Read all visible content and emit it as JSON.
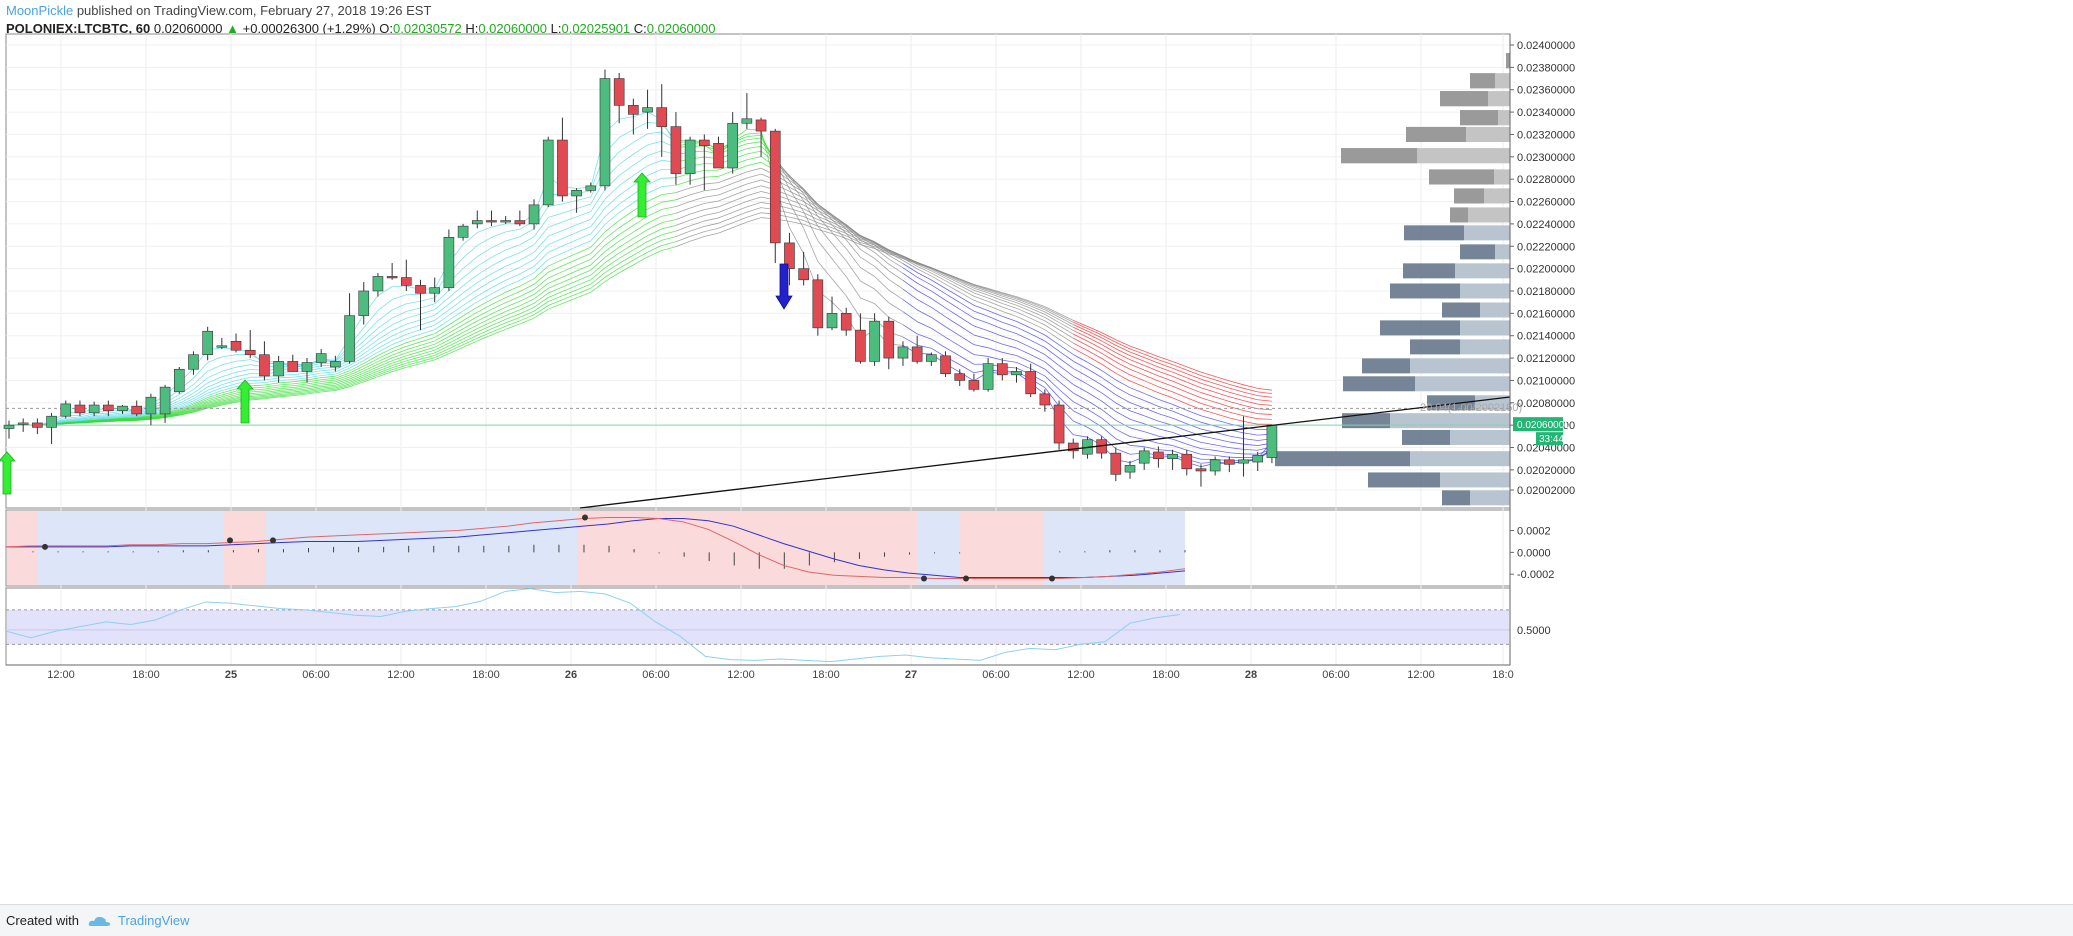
{
  "header": {
    "author": "MoonPickle",
    "published": "published on TradingView.com, February 27, 2018 19:26 EST",
    "symbol": "POLONIEX:LTCBTC, 60",
    "last": "0.02060000",
    "change_arrow": "▲",
    "change": "+0.00026300 (+1.29%)",
    "o_label": "O:",
    "o": "0.02030572",
    "h_label": "H:",
    "h": "0.02060000",
    "l_label": "L:",
    "l": "0.02025901",
    "c_label": "C:",
    "c": "0.02060000"
  },
  "footer": {
    "created_with": "Created with",
    "brand": "TradingView",
    "brand_icon": "tradingview-cloud-icon"
  },
  "colors": {
    "up": "#4dbd7f",
    "down": "#e04a52",
    "ribbon_cyan": "#4fd8e8",
    "ribbon_green": "#33dd33",
    "ribbon_gray": "#888888",
    "ribbon_blue": "#3a3aee",
    "ribbon_red": "#ee2222",
    "price_tag": "#22b573",
    "vp_up": "#b8c4d0",
    "vp_down": "#66788c"
  },
  "chart_data": [
    {
      "type": "candlestick",
      "title": "",
      "x_ticks": [
        "12:00",
        "18:00",
        "25",
        "06:00",
        "12:00",
        "18:00",
        "26",
        "06:00",
        "12:00",
        "18:00",
        "27",
        "06:00",
        "12:00",
        "18:00",
        "28",
        "06:00",
        "12:00",
        "18:0"
      ],
      "y_ticks": [
        "0.02400000",
        "0.02380000",
        "0.02360000",
        "0.02340000",
        "0.02320000",
        "0.02300000",
        "0.02280000",
        "0.02260000",
        "0.02240000",
        "0.02220000",
        "0.02200000",
        "0.02180000",
        "0.02160000",
        "0.02140000",
        "0.02120000",
        "0.02100000",
        "0.02080000",
        "0.02060000",
        "0.02040000",
        "0.02020000",
        "0.02002000"
      ],
      "y_range": [
        0.0199,
        0.0241
      ],
      "current_price_label": "0.02060000",
      "countdown_label": "33:44",
      "trendline_label": "20.04(1.00/2002150)",
      "ohlc": [
        [
          0.02057,
          0.02064,
          0.02048,
          0.0206
        ],
        [
          0.02061,
          0.02066,
          0.02054,
          0.02062
        ],
        [
          0.02062,
          0.02066,
          0.02052,
          0.02058
        ],
        [
          0.02058,
          0.02071,
          0.02043,
          0.02068
        ],
        [
          0.02068,
          0.02082,
          0.02066,
          0.02079
        ],
        [
          0.02078,
          0.02082,
          0.02068,
          0.02071
        ],
        [
          0.02071,
          0.02081,
          0.02068,
          0.02078
        ],
        [
          0.02078,
          0.02082,
          0.02068,
          0.02073
        ],
        [
          0.02073,
          0.02078,
          0.0207,
          0.02077
        ],
        [
          0.02077,
          0.02082,
          0.02068,
          0.0207
        ],
        [
          0.0207,
          0.02088,
          0.0206,
          0.02085
        ],
        [
          0.0207,
          0.02096,
          0.02062,
          0.02094
        ],
        [
          0.0209,
          0.02112,
          0.02088,
          0.0211
        ],
        [
          0.0211,
          0.02126,
          0.02105,
          0.02123
        ],
        [
          0.02123,
          0.02148,
          0.02118,
          0.02144
        ],
        [
          0.0213,
          0.02138,
          0.02128,
          0.02131
        ],
        [
          0.02135,
          0.02142,
          0.02125,
          0.02127
        ],
        [
          0.02127,
          0.02145,
          0.0212,
          0.02123
        ],
        [
          0.02123,
          0.02135,
          0.021,
          0.02104
        ],
        [
          0.02104,
          0.02122,
          0.02098,
          0.02117
        ],
        [
          0.02117,
          0.02123,
          0.02108,
          0.02108
        ],
        [
          0.02108,
          0.0212,
          0.02098,
          0.02116
        ],
        [
          0.02116,
          0.02128,
          0.02112,
          0.02124
        ],
        [
          0.02112,
          0.02122,
          0.02108,
          0.02117
        ],
        [
          0.02117,
          0.02178,
          0.02115,
          0.02158
        ],
        [
          0.02158,
          0.02188,
          0.0215,
          0.0218
        ],
        [
          0.0218,
          0.02196,
          0.02175,
          0.02193
        ],
        [
          0.02193,
          0.02205,
          0.0219,
          0.02192
        ],
        [
          0.02192,
          0.02208,
          0.0218,
          0.02185
        ],
        [
          0.02185,
          0.0219,
          0.02145,
          0.02178
        ],
        [
          0.02178,
          0.02192,
          0.0217,
          0.02183
        ],
        [
          0.02183,
          0.02235,
          0.0218,
          0.02228
        ],
        [
          0.02228,
          0.0224,
          0.02225,
          0.02238
        ],
        [
          0.0224,
          0.02252,
          0.02236,
          0.02243
        ],
        [
          0.02243,
          0.02252,
          0.02238,
          0.02242
        ],
        [
          0.02242,
          0.02247,
          0.0224,
          0.02243
        ],
        [
          0.02243,
          0.02252,
          0.02238,
          0.0224
        ],
        [
          0.0224,
          0.02262,
          0.02235,
          0.02257
        ],
        [
          0.02257,
          0.02318,
          0.02255,
          0.02315
        ],
        [
          0.02315,
          0.02335,
          0.0226,
          0.02265
        ],
        [
          0.02265,
          0.02272,
          0.0225,
          0.0227
        ],
        [
          0.0227,
          0.02277,
          0.02268,
          0.02274
        ],
        [
          0.02274,
          0.02378,
          0.0227,
          0.0237
        ],
        [
          0.0237,
          0.02375,
          0.0233,
          0.02346
        ],
        [
          0.02346,
          0.02352,
          0.0232,
          0.02338
        ],
        [
          0.0234,
          0.0236,
          0.02325,
          0.02344
        ],
        [
          0.02344,
          0.02365,
          0.023,
          0.02327
        ],
        [
          0.02327,
          0.0234,
          0.02275,
          0.02285
        ],
        [
          0.02285,
          0.02318,
          0.02275,
          0.02315
        ],
        [
          0.02315,
          0.0232,
          0.0227,
          0.0231
        ],
        [
          0.02312,
          0.02318,
          0.0229,
          0.0229
        ],
        [
          0.0229,
          0.0234,
          0.02285,
          0.0233
        ],
        [
          0.0233,
          0.02357,
          0.02325,
          0.02334
        ],
        [
          0.02333,
          0.02335,
          0.023,
          0.02323
        ],
        [
          0.02323,
          0.02325,
          0.02205,
          0.02223
        ],
        [
          0.02223,
          0.02232,
          0.02185,
          0.022
        ],
        [
          0.022,
          0.02215,
          0.02185,
          0.0219
        ],
        [
          0.0219,
          0.02195,
          0.0214,
          0.02147
        ],
        [
          0.02147,
          0.02175,
          0.02145,
          0.0216
        ],
        [
          0.0216,
          0.02165,
          0.0214,
          0.02145
        ],
        [
          0.02145,
          0.0216,
          0.02115,
          0.02117
        ],
        [
          0.02117,
          0.0216,
          0.02113,
          0.02153
        ],
        [
          0.02153,
          0.02157,
          0.0211,
          0.0212
        ],
        [
          0.0212,
          0.02135,
          0.02113,
          0.0213
        ],
        [
          0.0213,
          0.0214,
          0.02115,
          0.02117
        ],
        [
          0.02117,
          0.02125,
          0.02113,
          0.02123
        ],
        [
          0.02122,
          0.02126,
          0.02103,
          0.02106
        ],
        [
          0.02106,
          0.0211,
          0.02095,
          0.021
        ],
        [
          0.021,
          0.02106,
          0.0209,
          0.02092
        ],
        [
          0.02092,
          0.0212,
          0.0209,
          0.02115
        ],
        [
          0.02115,
          0.0212,
          0.021,
          0.02105
        ],
        [
          0.02105,
          0.02112,
          0.02098,
          0.02108
        ],
        [
          0.02108,
          0.02115,
          0.02085,
          0.02088
        ],
        [
          0.02088,
          0.02092,
          0.02072,
          0.02078
        ],
        [
          0.02078,
          0.02082,
          0.02038,
          0.02044
        ],
        [
          0.02044,
          0.02048,
          0.0203,
          0.02037
        ],
        [
          0.02034,
          0.0205,
          0.0203,
          0.02047
        ],
        [
          0.02047,
          0.0205,
          0.0203,
          0.02035
        ],
        [
          0.02035,
          0.0204,
          0.0201,
          0.02016
        ],
        [
          0.02018,
          0.02028,
          0.02012,
          0.02024
        ],
        [
          0.02026,
          0.0204,
          0.0202,
          0.02037
        ],
        [
          0.02036,
          0.02041,
          0.02022,
          0.0203
        ],
        [
          0.0203,
          0.02038,
          0.0202,
          0.02034
        ],
        [
          0.02034,
          0.02038,
          0.02015,
          0.02021
        ],
        [
          0.02021,
          0.02025,
          0.02005,
          0.02019
        ],
        [
          0.02019,
          0.02032,
          0.02015,
          0.02029
        ],
        [
          0.02029,
          0.02032,
          0.02018,
          0.02025
        ],
        [
          0.02026,
          0.02068,
          0.02014,
          0.02029
        ],
        [
          0.02027,
          0.02036,
          0.02019,
          0.02033
        ],
        [
          0.02031,
          0.0206,
          0.02026,
          0.0206
        ]
      ],
      "volume_profile": [
        [
          0.02386,
          4,
          0
        ],
        [
          0.02368,
          25,
          15
        ],
        [
          0.02352,
          48,
          22
        ],
        [
          0.02335,
          38,
          12
        ],
        [
          0.0232,
          60,
          44
        ],
        [
          0.02301,
          76,
          93
        ],
        [
          0.02282,
          65,
          16
        ],
        [
          0.02265,
          30,
          26
        ],
        [
          0.02248,
          18,
          42
        ],
        [
          0.02232,
          60,
          46
        ],
        [
          0.02215,
          35,
          15
        ],
        [
          0.02198,
          52,
          55
        ],
        [
          0.0218,
          70,
          50
        ],
        [
          0.02163,
          38,
          30
        ],
        [
          0.02147,
          80,
          50
        ],
        [
          0.0213,
          50,
          50
        ],
        [
          0.02113,
          48,
          100
        ],
        [
          0.02097,
          72,
          95
        ],
        [
          0.0208,
          48,
          35
        ],
        [
          0.02064,
          48,
          120
        ],
        [
          0.02049,
          48,
          60
        ],
        [
          0.0203,
          135,
          100
        ],
        [
          0.02011,
          72,
          70
        ],
        [
          0.01995,
          28,
          40
        ]
      ]
    },
    {
      "type": "line",
      "title": "",
      "y_ticks": [
        "0.0002",
        "0.0000",
        "-0.0002"
      ],
      "y_range": [
        -0.00029,
        0.00037
      ],
      "series": [
        {
          "values": [
            5e-05,
            5e-05,
            5e-05,
            5e-05,
            5e-05,
            6e-05,
            6e-05,
            6e-05,
            6e-05,
            7e-05,
            8e-05,
            9e-05,
            0.0001,
            0.0001,
            0.0001,
            0.00011,
            0.00012,
            0.00013,
            0.00014,
            0.00016,
            0.00018,
            0.0002,
            0.00022,
            0.00024,
            0.00026,
            0.00029,
            0.00031,
            0.00031,
            0.00029,
            0.00024,
            0.00016,
            8e-05,
            1e-05,
            -6e-05,
            -0.00012,
            -0.00016,
            -0.00019,
            -0.00021,
            -0.00023,
            -0.00023,
            -0.00023,
            -0.00023,
            -0.00023,
            -0.00023,
            -0.00022,
            -0.00021,
            -0.00019,
            -0.00017
          ]
        },
        {
          "values": [
            5e-05,
            6e-05,
            6e-05,
            6e-05,
            6e-05,
            7e-05,
            7e-05,
            8e-05,
            8e-05,
            9e-05,
            0.0001,
            0.00012,
            0.00014,
            0.00015,
            0.00016,
            0.00017,
            0.00018,
            0.00019,
            0.0002,
            0.00022,
            0.00024,
            0.00027,
            0.00029,
            0.00031,
            0.00032,
            0.00032,
            0.00031,
            0.00028,
            0.00021,
            0.0001,
            -2e-05,
            -0.00012,
            -0.00018,
            -0.00021,
            -0.00022,
            -0.00023,
            -0.00023,
            -0.00024,
            -0.00024,
            -0.00024,
            -0.00024,
            -0.00024,
            -0.00024,
            -0.00023,
            -0.00022,
            -0.0002,
            -0.00018,
            -0.00015
          ]
        }
      ],
      "histogram": [
        0,
        1e-05,
        1e-05,
        1e-05,
        1e-05,
        1e-05,
        1e-05,
        2e-05,
        2e-05,
        2e-05,
        3e-05,
        3e-05,
        4e-05,
        5e-05,
        5e-05,
        5e-05,
        6e-05,
        6e-05,
        6e-05,
        6e-05,
        6e-05,
        7e-05,
        7e-05,
        7e-05,
        6e-05,
        3e-05,
        -1e-05,
        -4e-05,
        -8e-05,
        -0.00012,
        -0.00015,
        -0.00015,
        -0.00012,
        -9e-05,
        -6e-05,
        -4e-05,
        -2e-05,
        -1e-05,
        -1e-05,
        0,
        0,
        0,
        1e-05,
        1e-05,
        2e-05,
        2e-05,
        2e-05,
        2e-05
      ],
      "cross_points": [
        [
          45,
          5e-05
        ],
        [
          230,
          0.00011
        ],
        [
          273,
          0.00011
        ],
        [
          585,
          0.00032
        ],
        [
          924,
          -0.00024
        ],
        [
          966,
          -0.00024
        ],
        [
          1052,
          -0.00024
        ]
      ],
      "background_segments": [
        [
          "red",
          0,
          38
        ],
        [
          "blue",
          38,
          223
        ],
        [
          "red",
          223,
          266
        ],
        [
          "blue",
          266,
          577
        ],
        [
          "red",
          577,
          917
        ],
        [
          "blue",
          917,
          960
        ],
        [
          "red",
          960,
          1044
        ],
        [
          "blue",
          1044,
          1185
        ]
      ]
    },
    {
      "type": "line",
      "title": "",
      "y_ticks": [
        "0.5000"
      ],
      "y_range": [
        0.0,
        1.1
      ],
      "band": [
        0.28,
        0.8
      ],
      "series": [
        {
          "values": [
            0.48,
            0.38,
            0.48,
            0.55,
            0.62,
            0.58,
            0.65,
            0.8,
            0.92,
            0.9,
            0.86,
            0.82,
            0.8,
            0.76,
            0.72,
            0.7,
            0.78,
            0.82,
            0.85,
            0.93,
            1.08,
            1.12,
            1.06,
            1.08,
            1.04,
            0.9,
            0.62,
            0.4,
            0.1,
            0.05,
            0.04,
            0.06,
            0.04,
            0.02,
            0.06,
            0.1,
            0.12,
            0.08,
            0.06,
            0.04,
            0.16,
            0.22,
            0.2,
            0.28,
            0.32,
            0.6,
            0.68,
            0.73
          ]
        }
      ]
    }
  ]
}
